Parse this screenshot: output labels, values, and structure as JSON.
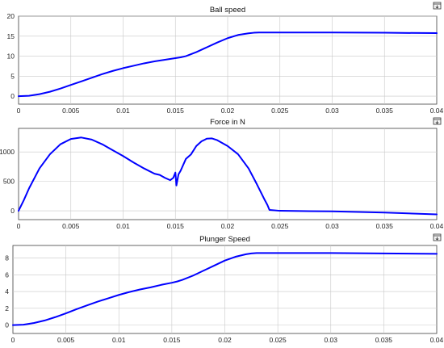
{
  "chart_data": [
    {
      "type": "line",
      "title": "Ball speed",
      "xlabel": "",
      "ylabel": "",
      "xlim": [
        0,
        0.04
      ],
      "ylim": [
        -2,
        20
      ],
      "grid": true,
      "x_ticks": [
        "0",
        "0.005",
        "0.01",
        "0.015",
        "0.02",
        "0.025",
        "0.03",
        "0.035",
        "0.04"
      ],
      "y_ticks": [
        "0",
        "5",
        "10",
        "15",
        "20"
      ],
      "series": [
        {
          "color": "#0000ff",
          "x": [
            0,
            0.001,
            0.002,
            0.003,
            0.004,
            0.005,
            0.006,
            0.007,
            0.008,
            0.009,
            0.01,
            0.011,
            0.012,
            0.013,
            0.014,
            0.015,
            0.0155,
            0.016,
            0.017,
            0.018,
            0.019,
            0.02,
            0.021,
            0.022,
            0.0225,
            0.023,
            0.0235,
            0.025,
            0.03,
            0.035,
            0.04
          ],
          "y": [
            0,
            0.1,
            0.5,
            1.1,
            1.9,
            2.8,
            3.7,
            4.6,
            5.5,
            6.3,
            7.0,
            7.6,
            8.2,
            8.7,
            9.1,
            9.5,
            9.7,
            10.0,
            11.0,
            12.2,
            13.4,
            14.5,
            15.3,
            15.7,
            15.85,
            15.9,
            15.9,
            15.9,
            15.9,
            15.85,
            15.75
          ]
        }
      ]
    },
    {
      "type": "line",
      "title": "Force in N",
      "xlabel": "",
      "ylabel": "",
      "xlim": [
        0,
        0.04
      ],
      "ylim": [
        -150,
        1400
      ],
      "grid": true,
      "x_ticks": [
        "0",
        "0.005",
        "0.01",
        "0.015",
        "0.02",
        "0.025",
        "0.03",
        "0.035",
        "0.04"
      ],
      "y_ticks": [
        "0",
        "500",
        "1000"
      ],
      "series": [
        {
          "color": "#0000ff",
          "x": [
            0,
            0.0005,
            0.001,
            0.002,
            0.003,
            0.004,
            0.005,
            0.006,
            0.007,
            0.008,
            0.009,
            0.01,
            0.011,
            0.012,
            0.013,
            0.0135,
            0.014,
            0.0145,
            0.0148,
            0.015,
            0.0151,
            0.0153,
            0.0155,
            0.016,
            0.0165,
            0.017,
            0.0175,
            0.018,
            0.0185,
            0.019,
            0.02,
            0.021,
            0.022,
            0.0228,
            0.0235,
            0.0238,
            0.024,
            0.025,
            0.03,
            0.035,
            0.04
          ],
          "y": [
            0,
            180,
            380,
            720,
            960,
            1130,
            1220,
            1245,
            1210,
            1130,
            1030,
            930,
            820,
            720,
            630,
            610,
            560,
            520,
            560,
            650,
            430,
            620,
            680,
            880,
            960,
            1100,
            1180,
            1225,
            1230,
            1200,
            1100,
            960,
            720,
            450,
            200,
            100,
            15,
            0,
            -10,
            -30,
            -60
          ]
        }
      ]
    },
    {
      "type": "line",
      "title": "Plunger Speed",
      "xlabel": "",
      "ylabel": "",
      "xlim": [
        0,
        0.04
      ],
      "ylim": [
        -1,
        9.5
      ],
      "grid": true,
      "x_ticks": [
        "0",
        "0.005",
        "0.01",
        "0.015",
        "0.02",
        "0.025",
        "0.03",
        "0.035",
        "0.04"
      ],
      "y_ticks": [
        "0",
        "2",
        "4",
        "6",
        "8"
      ],
      "series": [
        {
          "color": "#0000ff",
          "x": [
            0,
            0.001,
            0.002,
            0.003,
            0.004,
            0.005,
            0.006,
            0.007,
            0.008,
            0.009,
            0.01,
            0.011,
            0.012,
            0.013,
            0.014,
            0.015,
            0.0155,
            0.016,
            0.017,
            0.018,
            0.019,
            0.02,
            0.021,
            0.022,
            0.0225,
            0.023,
            0.0235,
            0.025,
            0.03,
            0.035,
            0.04
          ],
          "y": [
            0,
            0.05,
            0.25,
            0.55,
            0.95,
            1.4,
            1.9,
            2.35,
            2.8,
            3.2,
            3.6,
            3.95,
            4.25,
            4.5,
            4.8,
            5.05,
            5.2,
            5.4,
            5.9,
            6.5,
            7.1,
            7.7,
            8.15,
            8.45,
            8.55,
            8.6,
            8.6,
            8.6,
            8.6,
            8.55,
            8.5
          ]
        }
      ]
    }
  ],
  "toolbar": {
    "dock_icon": "dock-figure-icon"
  }
}
